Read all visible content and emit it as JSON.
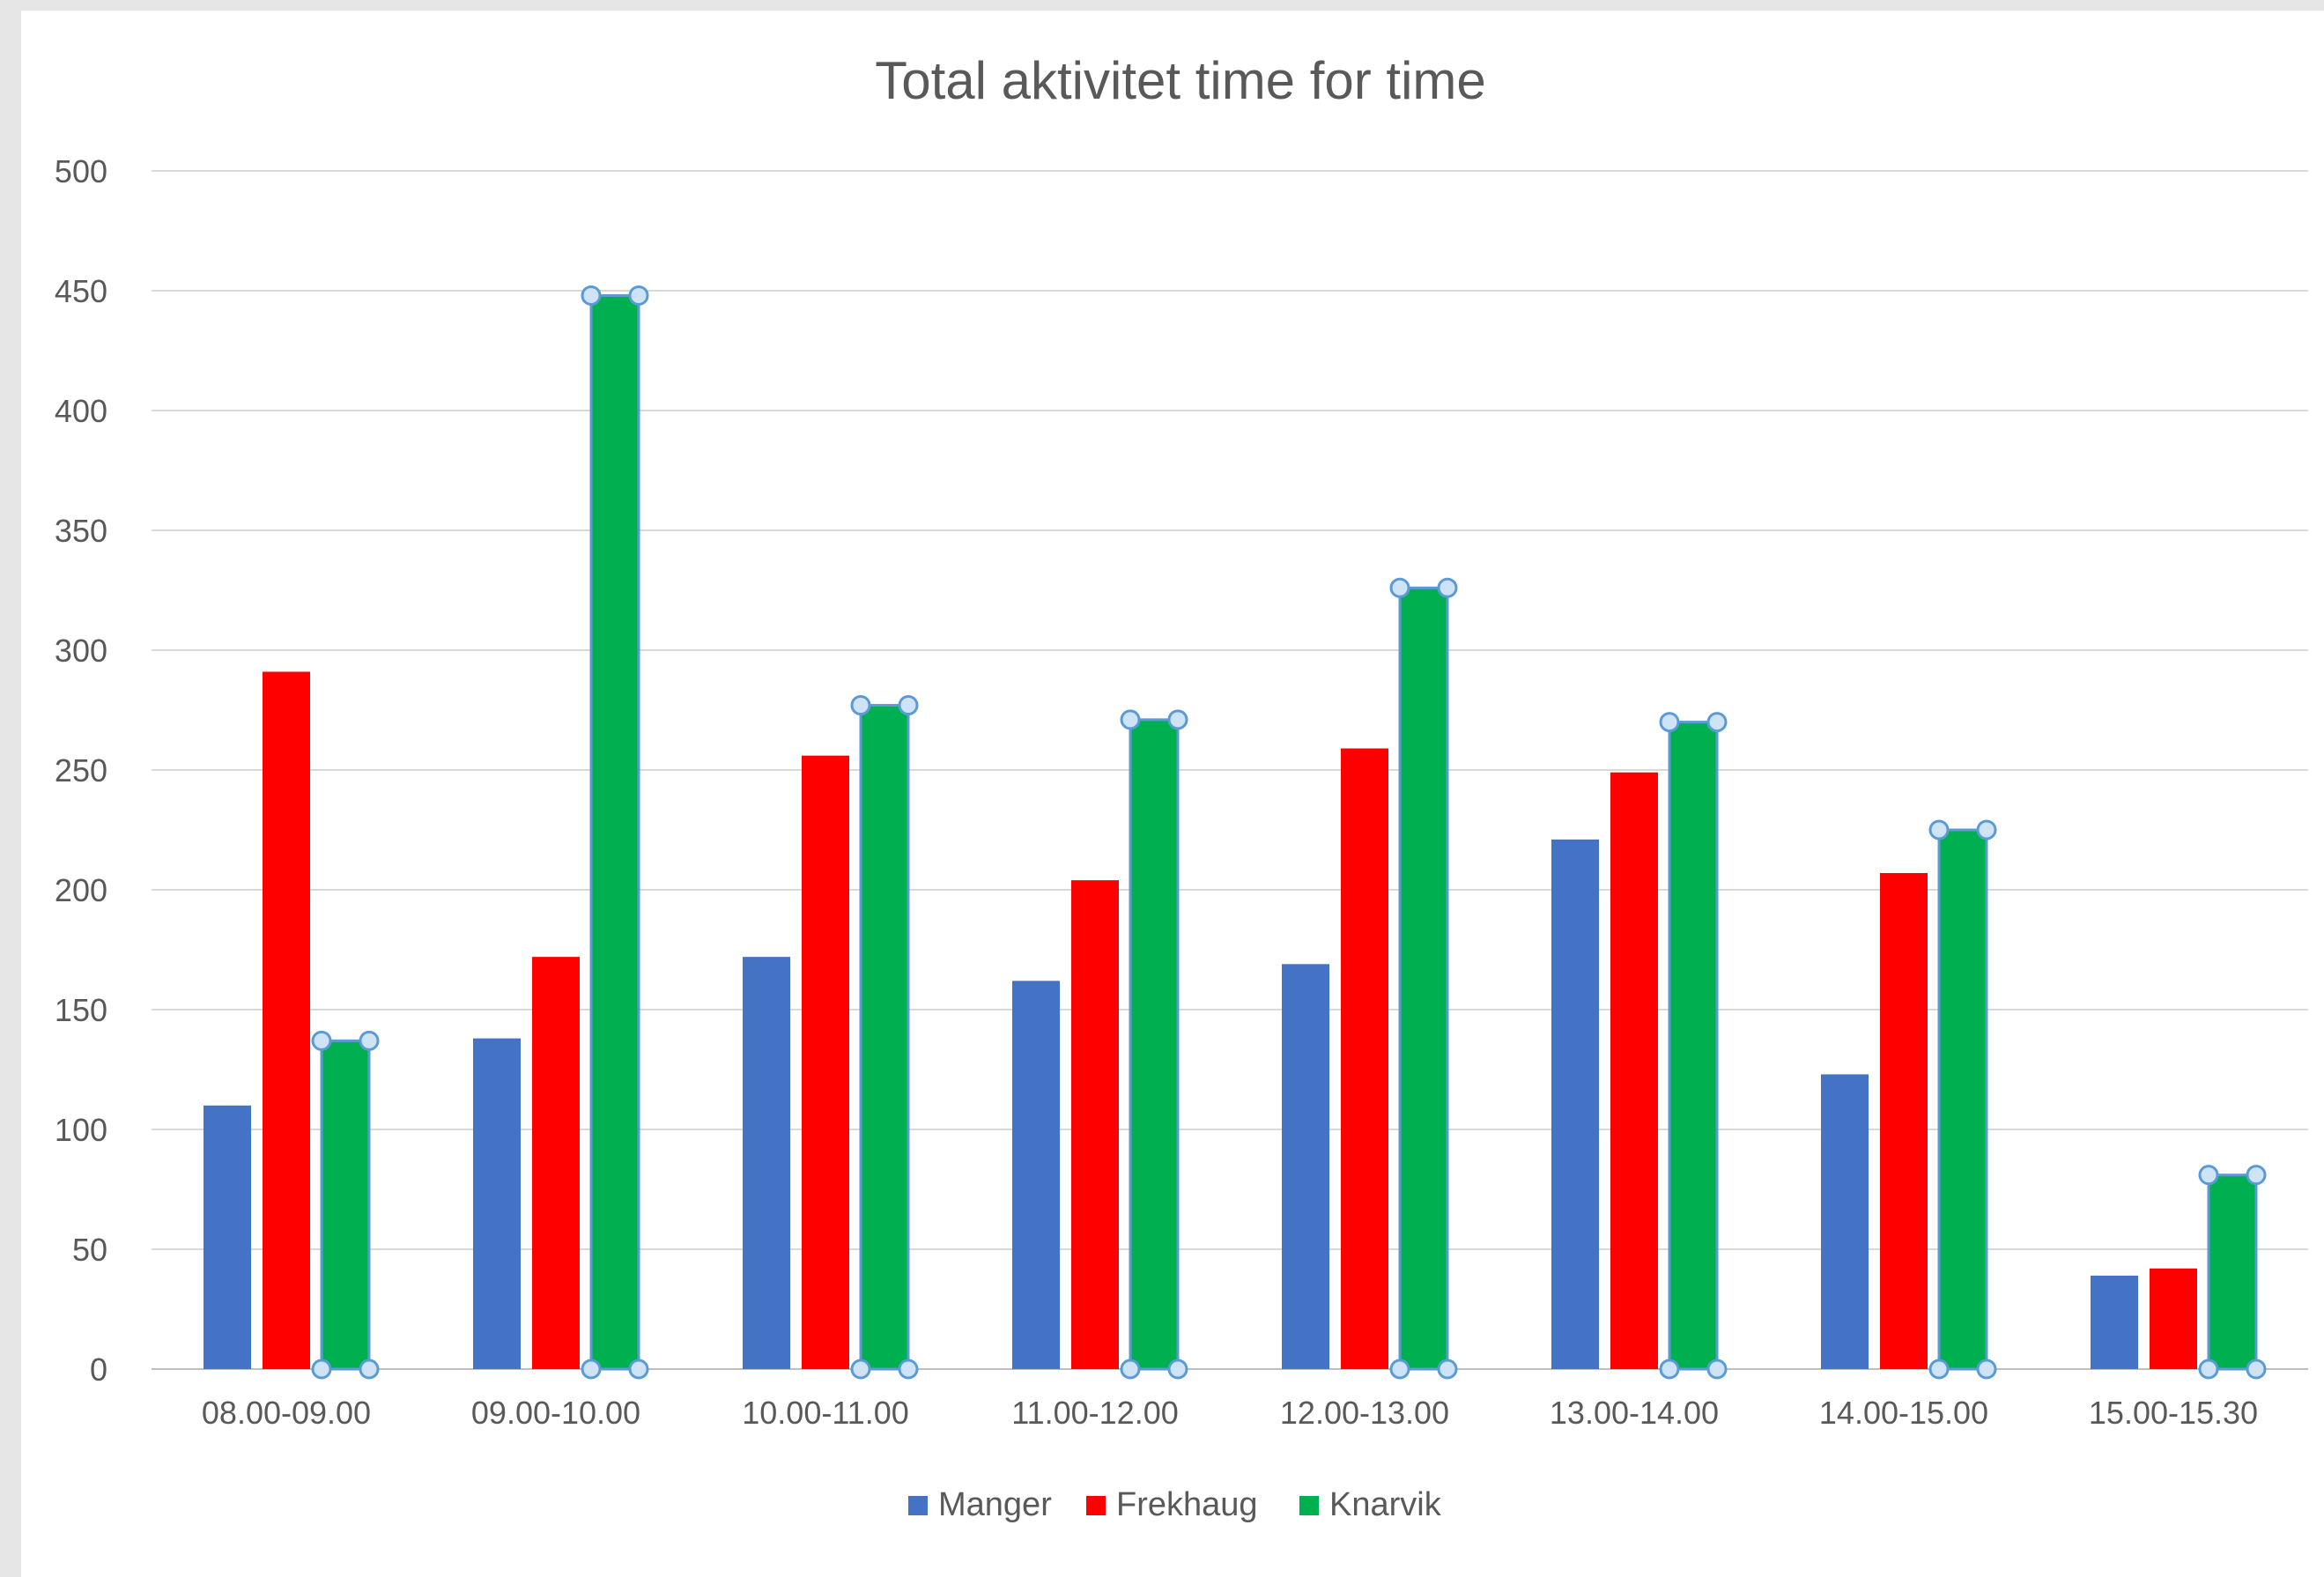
{
  "chart_data": {
    "type": "bar",
    "title": "Total aktivitet time for time",
    "xlabel": "",
    "ylabel": "",
    "ylim": [
      0,
      500
    ],
    "yticks": [
      0,
      50,
      100,
      150,
      200,
      250,
      300,
      350,
      400,
      450,
      500
    ],
    "grid": true,
    "legend_position": "bottom",
    "categories": [
      "08.00-09.00",
      "09.00-10.00",
      "10.00-11.00",
      "11.00-12.00",
      "12.00-13.00",
      "13.00-14.00",
      "14.00-15.00",
      "15.00-15.30"
    ],
    "series": [
      {
        "name": "Manger",
        "color": "#4472c4",
        "values": [
          110,
          138,
          172,
          162,
          169,
          221,
          123,
          39
        ]
      },
      {
        "name": "Frekhaug",
        "color": "#ff0000",
        "values": [
          291,
          172,
          256,
          204,
          259,
          249,
          207,
          42
        ]
      },
      {
        "name": "Knarvik",
        "color": "#00b050",
        "values": [
          137,
          448,
          277,
          271,
          326,
          270,
          225,
          81
        ],
        "selected": true
      }
    ],
    "selection_color": "#5b9bd5"
  }
}
